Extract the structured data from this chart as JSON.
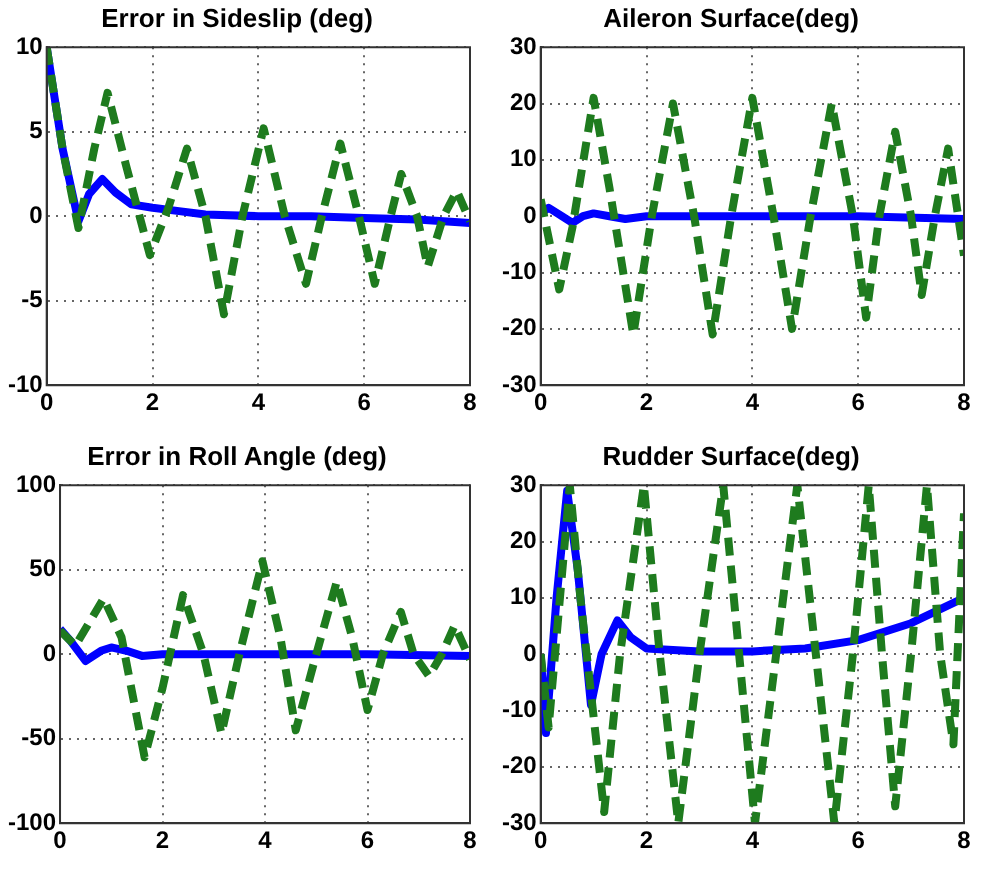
{
  "chart_data": [
    {
      "type": "line",
      "title": "Error in Sideslip (deg)",
      "xlim": [
        0,
        8
      ],
      "xticks": [
        0,
        2,
        4,
        6,
        8
      ],
      "ylim": [
        -10,
        10
      ],
      "yticks": [
        -10,
        -5,
        0,
        5,
        10
      ],
      "grid": true,
      "legend": false,
      "marker": "none",
      "series": [
        {
          "color": "#1e7b1e",
          "line_style": "dashed",
          "x": [
            0,
            0.3,
            0.6,
            0.9,
            1.15,
            1.5,
            1.95,
            2.3,
            2.65,
            3,
            3.35,
            3.7,
            4.1,
            4.5,
            4.9,
            5.2,
            5.55,
            5.9,
            6.2,
            6.5,
            6.7,
            7,
            7.2,
            7.5,
            7.75,
            8
          ],
          "values": [
            10,
            4,
            -0.7,
            4,
            7.3,
            3,
            -2.3,
            0.5,
            4,
            0,
            -5.8,
            0,
            5.2,
            0,
            -4,
            0,
            4.3,
            0,
            -4,
            0,
            2.5,
            0,
            -3,
            0,
            1.5,
            -0.3
          ]
        },
        {
          "color": "#0000ff",
          "line_style": "solid",
          "x": [
            0,
            0.3,
            0.6,
            0.8,
            1.05,
            1.3,
            1.6,
            2,
            2.5,
            3,
            4,
            5,
            6,
            7,
            8
          ],
          "values": [
            10,
            4,
            -0.3,
            1.3,
            2.2,
            1.4,
            0.7,
            0.5,
            0.3,
            0.1,
            0,
            0,
            -0.1,
            -0.2,
            -0.4
          ]
        }
      ]
    },
    {
      "type": "line",
      "title": "Aileron Surface(deg)",
      "xlim": [
        0,
        8
      ],
      "xticks": [
        0,
        2,
        4,
        6,
        8
      ],
      "ylim": [
        -30,
        30
      ],
      "yticks": [
        -30,
        -20,
        -10,
        0,
        10,
        20,
        30
      ],
      "grid": true,
      "legend": false,
      "marker": "none",
      "series": [
        {
          "color": "#1e7b1e",
          "line_style": "dashed",
          "x": [
            0,
            0.35,
            0.6,
            1,
            1.3,
            1.75,
            2.1,
            2.5,
            2.9,
            3.25,
            3.6,
            4,
            4.4,
            4.75,
            5.1,
            5.5,
            5.9,
            6.15,
            6.4,
            6.7,
            7,
            7.2,
            7.45,
            7.7,
            8
          ],
          "values": [
            3,
            -13,
            -2,
            21,
            5,
            -21,
            0,
            20,
            0,
            -21,
            0,
            21,
            0,
            -20,
            0,
            20,
            0,
            -18,
            0,
            15,
            0,
            -14,
            0,
            12,
            -7
          ]
        },
        {
          "color": "#0000ff",
          "line_style": "solid",
          "x": [
            0,
            0.15,
            0.4,
            0.6,
            0.8,
            1,
            1.3,
            1.6,
            2,
            4,
            6,
            8
          ],
          "values": [
            0.5,
            1.5,
            0,
            -1.2,
            0,
            0.5,
            0,
            -0.5,
            0,
            0,
            0,
            -0.5
          ]
        }
      ]
    },
    {
      "type": "line",
      "title": "Error in Roll Angle (deg)",
      "xlim": [
        0,
        8
      ],
      "xticks": [
        0,
        2,
        4,
        6,
        8
      ],
      "ylim": [
        -100,
        100
      ],
      "yticks": [
        -100,
        -50,
        0,
        50,
        100
      ],
      "grid": true,
      "legend": false,
      "marker": "none",
      "series": [
        {
          "color": "#1e7b1e",
          "line_style": "dashed",
          "x": [
            0,
            0.3,
            0.85,
            1.2,
            1.65,
            2,
            2.4,
            2.8,
            3.15,
            3.5,
            3.95,
            4.3,
            4.6,
            5,
            5.4,
            5.7,
            6,
            6.3,
            6.65,
            6.9,
            7.2,
            7.45,
            7.7,
            8
          ],
          "values": [
            14,
            5,
            33,
            10,
            -61,
            -20,
            35,
            0,
            -47,
            0,
            55,
            10,
            -45,
            0,
            43,
            10,
            -33,
            0,
            25,
            0,
            -13,
            0,
            17,
            -3
          ]
        },
        {
          "color": "#0000ff",
          "line_style": "solid",
          "x": [
            0,
            0.2,
            0.5,
            0.8,
            1,
            1.3,
            1.6,
            2,
            4,
            6,
            8
          ],
          "values": [
            15,
            8,
            -4,
            2,
            4,
            2,
            -1,
            0,
            0,
            0,
            -1
          ]
        }
      ]
    },
    {
      "type": "line",
      "title": "Rudder Surface(deg)",
      "xlim": [
        0,
        8
      ],
      "xticks": [
        0,
        2,
        4,
        6,
        8
      ],
      "ylim": [
        -30,
        30
      ],
      "yticks": [
        -30,
        -20,
        -10,
        0,
        10,
        20,
        30
      ],
      "grid": true,
      "legend": false,
      "marker": "none",
      "series": [
        {
          "color": "#1e7b1e",
          "line_style": "dashed",
          "x": [
            0,
            0.15,
            0.55,
            0.75,
            1.2,
            1.5,
            1.95,
            2.25,
            2.6,
            3,
            3.45,
            3.75,
            4.05,
            4.45,
            4.85,
            5.2,
            5.55,
            5.9,
            6.2,
            6.45,
            6.7,
            7,
            7.3,
            7.55,
            7.8,
            8
          ],
          "values": [
            0,
            -13,
            30,
            10,
            -28,
            0,
            30,
            0,
            -30,
            0,
            30,
            0,
            -30,
            0,
            30,
            0,
            -30,
            0,
            30,
            0,
            -27,
            0,
            30,
            0,
            -16,
            25
          ]
        },
        {
          "color": "#0000ff",
          "line_style": "solid",
          "x": [
            0,
            0.1,
            0.3,
            0.5,
            0.7,
            0.95,
            1.15,
            1.45,
            1.7,
            2,
            3,
            4,
            5,
            6,
            7,
            8
          ],
          "values": [
            0,
            -14,
            10,
            29,
            15,
            -9,
            0,
            6,
            3,
            1,
            0.5,
            0.5,
            1,
            2.5,
            5.5,
            10
          ]
        }
      ]
    }
  ]
}
